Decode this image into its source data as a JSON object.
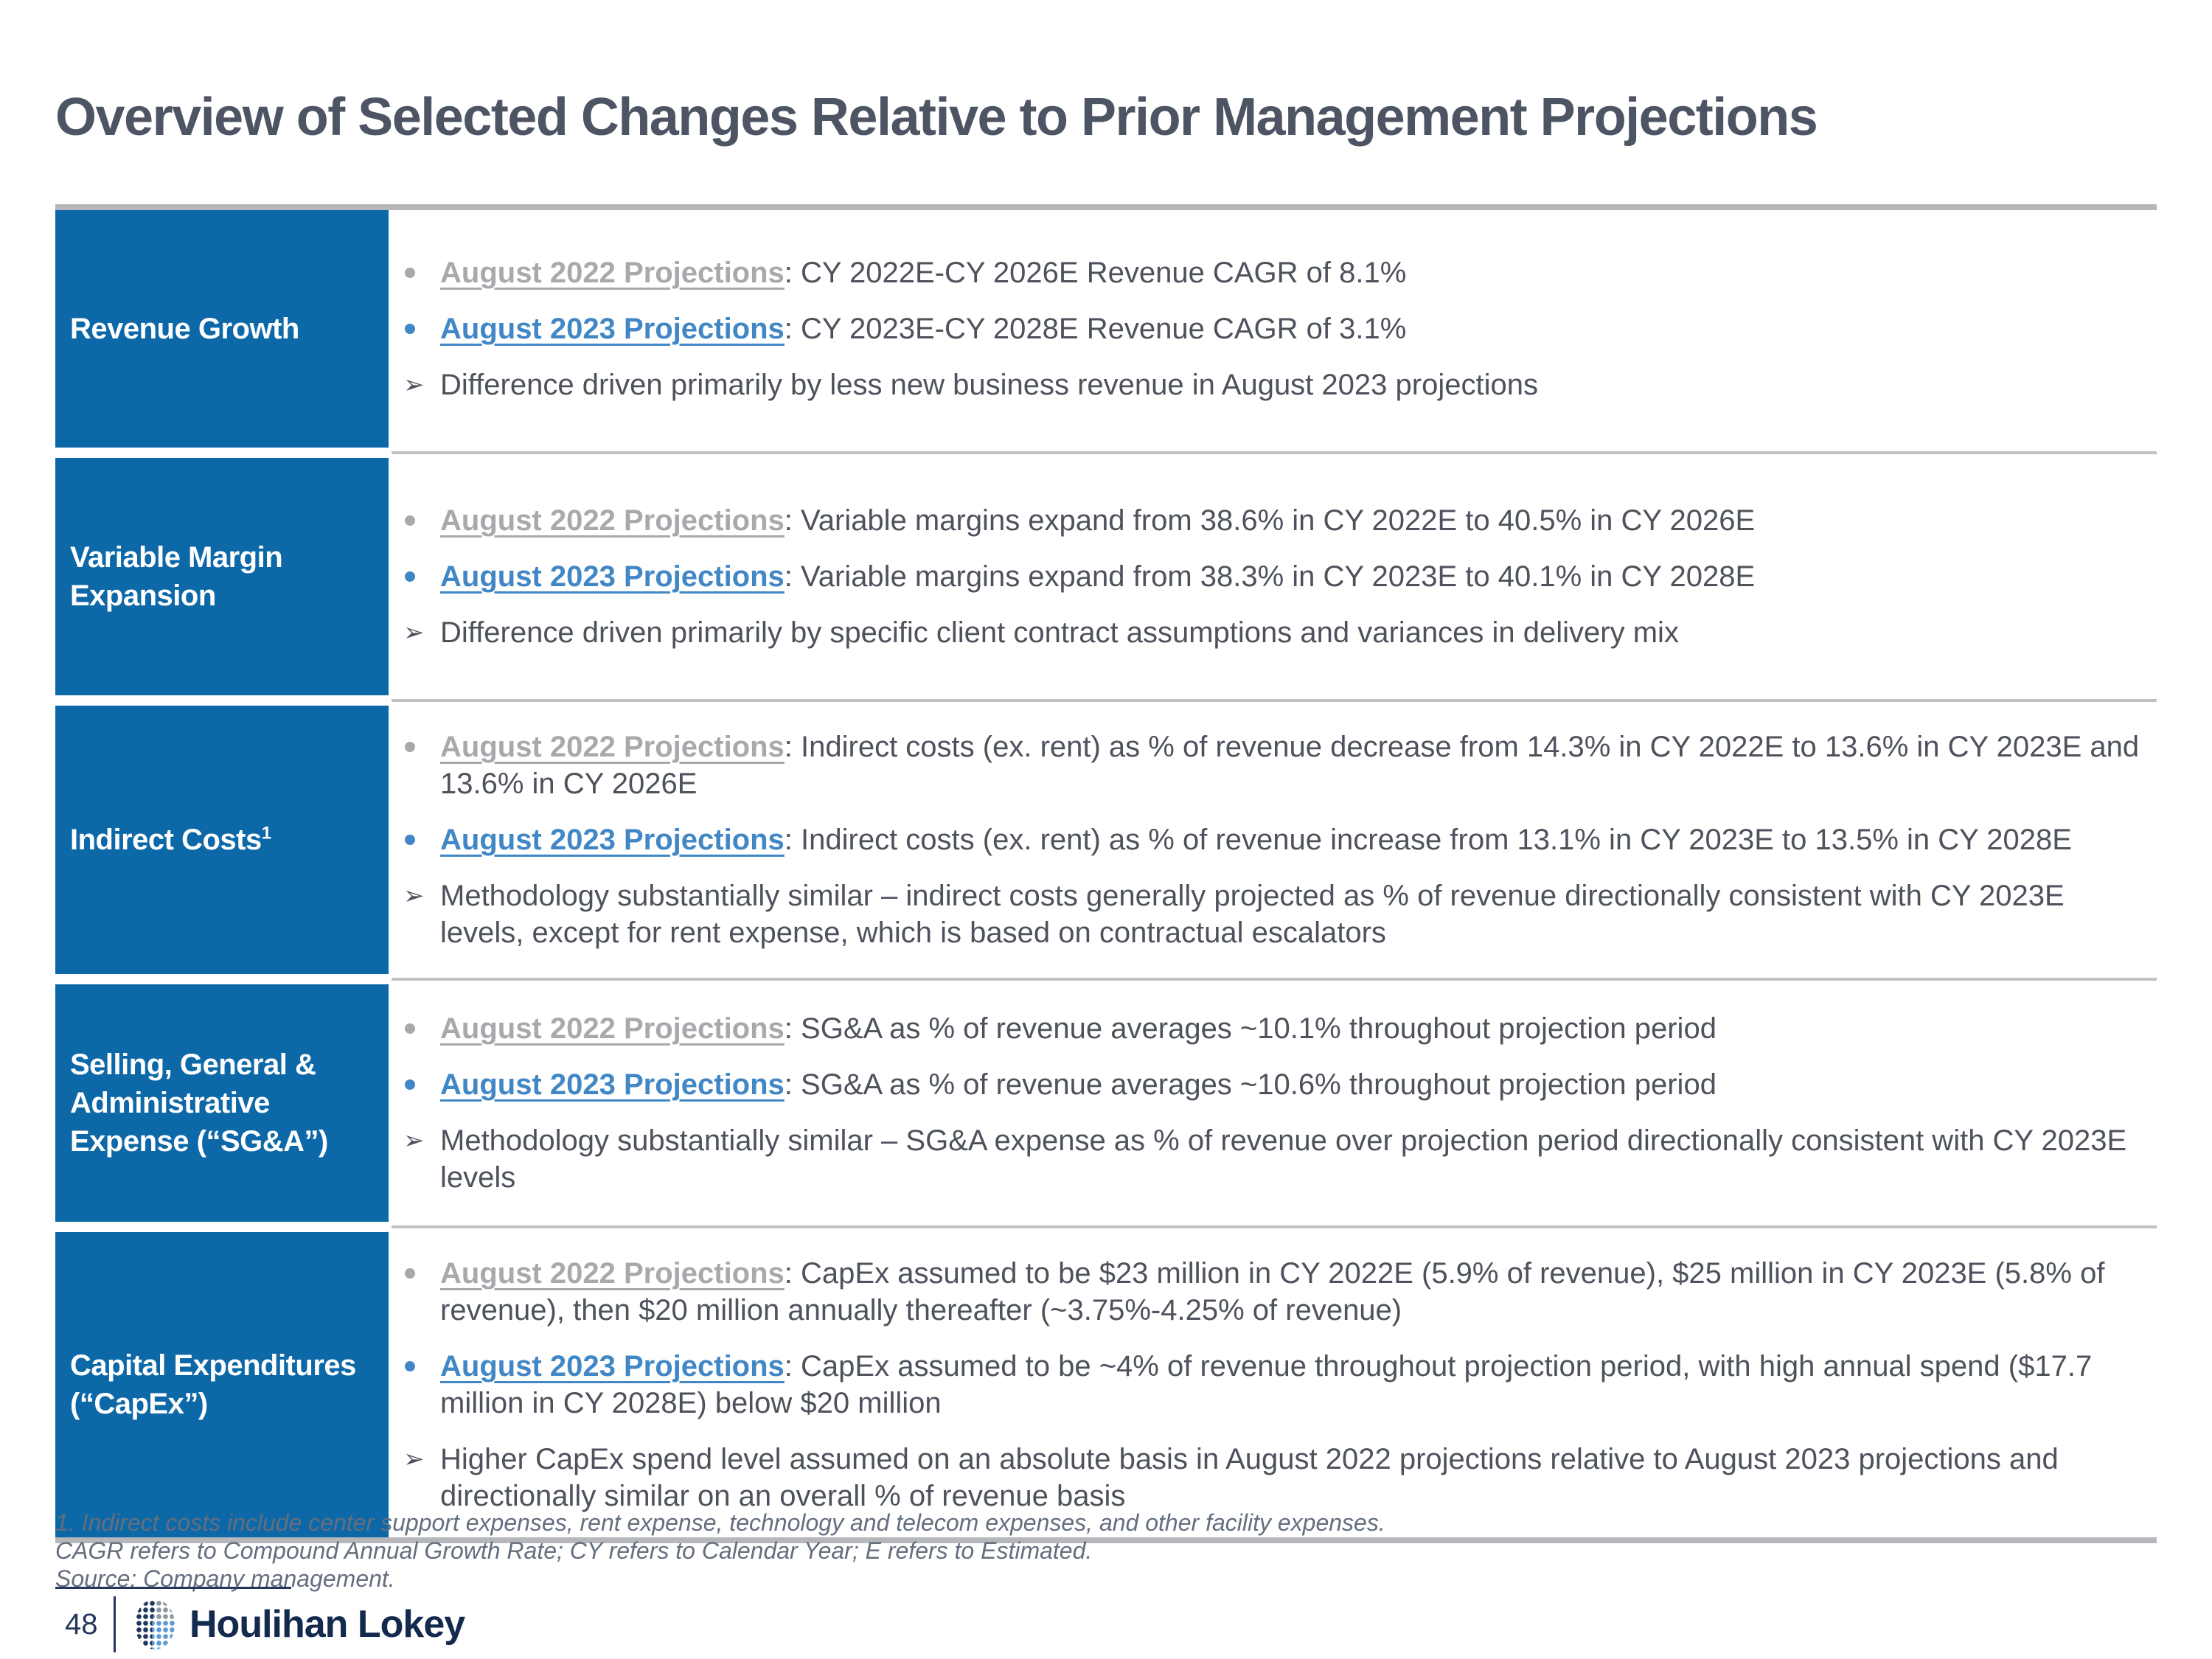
{
  "slide": {
    "title": "Overview of Selected Changes Relative to Prior Management Projections",
    "footnotes": [
      "1.  Indirect costs include center support expenses, rent expense, technology and telecom expenses, and other facility expenses.",
      "CAGR refers to Compound Annual Growth Rate; CY refers to Calendar Year; E refers to Estimated.",
      "Source: Company management."
    ],
    "footer": {
      "page_number": "48",
      "brand": "Houlihan Lokey"
    }
  },
  "colors": {
    "header_blue": "#0D68A8",
    "link_blue_2023": "#4187C6",
    "link_gray_2022": "#A7A9AC",
    "body_text": "#4D525C",
    "title_text": "#4D5564",
    "table_border_gray": "#B5B7BA",
    "footer_navy": "#14294E"
  },
  "table": {
    "rows": [
      {
        "header": "Revenue Growth",
        "bullets": [
          {
            "label": "August 2022 Projections",
            "text": ": CY 2022E-CY 2026E Revenue CAGR of 8.1%"
          },
          {
            "label": "August 2023 Projections",
            "text": ": CY 2023E-CY 2028E Revenue CAGR of 3.1%"
          },
          {
            "text": "Difference driven primarily by less new business revenue in August 2023 projections"
          }
        ]
      },
      {
        "header": "Variable Margin Expansion",
        "bullets": [
          {
            "label": "August 2022 Projections",
            "text": ": Variable margins expand from 38.6% in CY 2022E to 40.5% in CY 2026E"
          },
          {
            "label": "August 2023 Projections",
            "text": ": Variable margins expand from 38.3% in CY 2023E to 40.1% in CY 2028E"
          },
          {
            "text": "Difference driven primarily by specific client contract assumptions and variances in delivery mix"
          }
        ]
      },
      {
        "header": "Indirect Costs",
        "header_sup": "1",
        "bullets": [
          {
            "label": "August 2022 Projections",
            "text": ": Indirect costs (ex. rent) as % of revenue decrease from 14.3% in CY 2022E to 13.6% in CY 2023E and 13.6% in CY 2026E"
          },
          {
            "label": "August 2023 Projections",
            "text": ": Indirect costs (ex. rent) as % of revenue increase from 13.1% in CY 2023E to 13.5% in CY 2028E"
          },
          {
            "text": "Methodology substantially similar – indirect costs generally projected as % of revenue directionally consistent with CY 2023E levels, except for rent expense, which is based on contractual escalators"
          }
        ]
      },
      {
        "header": "Selling, General & Administrative Expense (“SG&A”)",
        "bullets": [
          {
            "label": "August 2022 Projections",
            "text": ": SG&A as % of revenue averages ~10.1% throughout projection period"
          },
          {
            "label": "August 2023 Projections",
            "text": ": SG&A as % of revenue averages ~10.6% throughout projection period"
          },
          {
            "text": "Methodology substantially similar – SG&A expense as % of revenue over projection period directionally consistent with CY 2023E levels"
          }
        ]
      },
      {
        "header": "Capital Expenditures (“CapEx”)",
        "bullets": [
          {
            "label": "August 2022 Projections",
            "text": ": CapEx assumed to be $23 million in CY 2022E (5.9% of revenue), $25 million in CY 2023E (5.8% of revenue), then $20 million annually thereafter (~3.75%-4.25% of revenue)"
          },
          {
            "label": "August 2023 Projections",
            "text": ": CapEx assumed to be ~4% of revenue throughout projection period, with high annual spend ($17.7 million in CY 2028E) below $20 million"
          },
          {
            "text": "Higher CapEx spend level assumed on an absolute basis in August 2022 projections relative to August 2023 projections and directionally similar on an overall % of revenue basis"
          }
        ]
      }
    ]
  }
}
